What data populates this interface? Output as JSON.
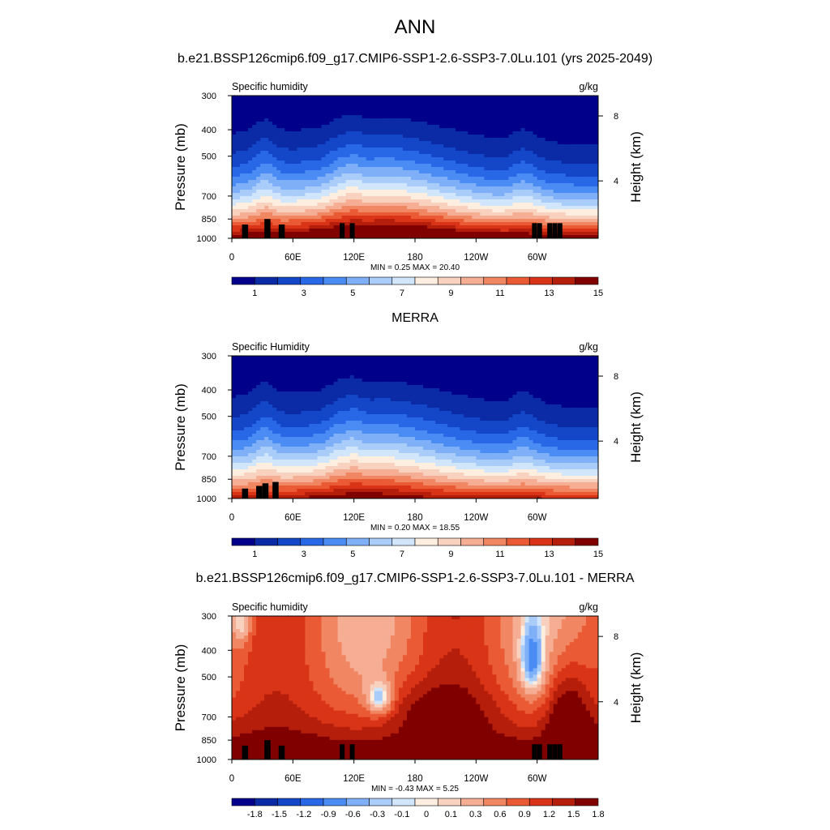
{
  "figure": {
    "title": "ANN",
    "case_name": "b.e21.BSSP126cmip6.f09_g17.CMIP6-SSP1-2.6-SSP3-7.0Lu.101 (yrs 2025-2049)"
  },
  "chart_data": [
    {
      "type": "heatmap",
      "panel_title": "",
      "left_string": "Specific humidity",
      "right_string": "g/kg",
      "xlabel": "",
      "ylabel": "Pressure (mb)",
      "ylabel_right": "Height (km)",
      "x_ticks": [
        "0",
        "60E",
        "120E",
        "180",
        "120W",
        "60W"
      ],
      "y_ticks": [
        300,
        400,
        500,
        700,
        850,
        1000
      ],
      "y_ticks_right": [
        8,
        4
      ],
      "stats_text": "MIN =   0.25  MAX =  20.40",
      "field": {
        "min": 0.25,
        "max": 20.4
      },
      "colorbar": {
        "levels": [
          0,
          1,
          2,
          3,
          4,
          5,
          6,
          7,
          8,
          9,
          10,
          11,
          12,
          13,
          14,
          15,
          16
        ],
        "labels": [
          "1",
          "3",
          "5",
          "7",
          "9",
          "11",
          "13",
          "15"
        ],
        "colors": [
          "#00008b",
          "#0a2aa6",
          "#1446c8",
          "#2868e6",
          "#4a8cf4",
          "#7fb0f7",
          "#a9ccf9",
          "#d2e6fb",
          "#fdeee0",
          "#f9d2bf",
          "#f5ad93",
          "#f08662",
          "#ea5a34",
          "#d93417",
          "#b51e0b",
          "#800000"
        ]
      }
    },
    {
      "type": "heatmap",
      "panel_title": "MERRA",
      "left_string": "Specific Humidity",
      "right_string": "g/kg",
      "xlabel": "",
      "ylabel": "Pressure (mb)",
      "ylabel_right": "Height (km)",
      "x_ticks": [
        "0",
        "60E",
        "120E",
        "180",
        "120W",
        "60W"
      ],
      "y_ticks": [
        300,
        400,
        500,
        700,
        850,
        1000
      ],
      "y_ticks_right": [
        8,
        4
      ],
      "stats_text": "MIN =   0.20  MAX =  18.55",
      "field": {
        "min": 0.2,
        "max": 18.55
      },
      "colorbar": {
        "levels": [
          0,
          1,
          2,
          3,
          4,
          5,
          6,
          7,
          8,
          9,
          10,
          11,
          12,
          13,
          14,
          15,
          16
        ],
        "labels": [
          "1",
          "3",
          "5",
          "7",
          "9",
          "11",
          "13",
          "15"
        ],
        "colors": [
          "#00008b",
          "#0a2aa6",
          "#1446c8",
          "#2868e6",
          "#4a8cf4",
          "#7fb0f7",
          "#a9ccf9",
          "#d2e6fb",
          "#fdeee0",
          "#f9d2bf",
          "#f5ad93",
          "#f08662",
          "#ea5a34",
          "#d93417",
          "#b51e0b",
          "#800000"
        ]
      }
    },
    {
      "type": "heatmap",
      "panel_title": "b.e21.BSSP126cmip6.f09_g17.CMIP6-SSP1-2.6-SSP3-7.0Lu.101 - MERRA",
      "left_string": "Specific humidity",
      "right_string": "g/kg",
      "xlabel": "",
      "ylabel": "Pressure (mb)",
      "ylabel_right": "Height (km)",
      "x_ticks": [
        "0",
        "60E",
        "120E",
        "180",
        "120W",
        "60W"
      ],
      "y_ticks": [
        300,
        400,
        500,
        700,
        850,
        1000
      ],
      "y_ticks_right": [
        8,
        4
      ],
      "stats_text": "MIN =  -0.43  MAX =   5.25",
      "field": {
        "min": -0.43,
        "max": 5.25
      },
      "colorbar": {
        "levels": [
          -2.1,
          -1.8,
          -1.5,
          -1.2,
          -0.9,
          -0.6,
          -0.3,
          -0.1,
          0,
          0.1,
          0.3,
          0.6,
          0.9,
          1.2,
          1.5,
          1.8,
          2.1
        ],
        "labels": [
          "-1.8",
          "-1.5",
          "-1.2",
          "-0.9",
          "-0.6",
          "-0.3",
          "-0.1",
          "0",
          "0.1",
          "0.3",
          "0.6",
          "0.9",
          "1.2",
          "1.5",
          "1.8"
        ],
        "colors": [
          "#00008b",
          "#0a2aa6",
          "#1446c8",
          "#2868e6",
          "#4a8cf4",
          "#7fb0f7",
          "#a9ccf9",
          "#d2e6fb",
          "#fdeee0",
          "#f9d2bf",
          "#f5ad93",
          "#f08662",
          "#ea5a34",
          "#d93417",
          "#b51e0b",
          "#800000"
        ]
      }
    }
  ]
}
